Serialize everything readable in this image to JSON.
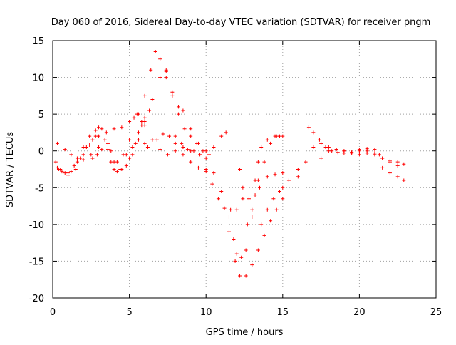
{
  "chart_data": {
    "type": "scatter",
    "title": "Day 060 of 2016, Sidereal Day-to-day VTEC variation (SDTVAR) for receiver pngm",
    "xlabel": "GPS time / hours",
    "ylabel": "SDTVAR / TECUs",
    "xlim": [
      0,
      25
    ],
    "ylim": [
      -20,
      15
    ],
    "xticks": [
      0,
      5,
      10,
      15,
      20,
      25
    ],
    "yticks": [
      15,
      10,
      5,
      0,
      -5,
      -10,
      -15,
      -20
    ],
    "grid": true,
    "marker": "+",
    "color": "#ff0000",
    "series": [
      {
        "values": [
          [
            0.2,
            -1.5
          ],
          [
            0.5,
            -2.5
          ],
          [
            1.0,
            -3.3
          ],
          [
            1.5,
            -2.5
          ],
          [
            2.0,
            -1.2
          ],
          [
            2.5,
            -0.5
          ],
          [
            3.0,
            0.5
          ]
        ]
      },
      {
        "values": [
          [
            0.3,
            1.0
          ],
          [
            0.8,
            0.2
          ],
          [
            1.2,
            -0.5
          ],
          [
            1.6,
            -1.0
          ],
          [
            2.0,
            -0.5
          ],
          [
            2.4,
            0.8
          ],
          [
            2.8,
            2.0
          ],
          [
            3.0,
            3.2
          ]
        ]
      },
      {
        "values": [
          [
            0.4,
            -2.5
          ],
          [
            0.8,
            -3.0
          ],
          [
            1.2,
            -2.8
          ],
          [
            1.6,
            -1.5
          ],
          [
            2.0,
            0.5
          ],
          [
            2.4,
            2.0
          ],
          [
            2.8,
            2.8
          ],
          [
            3.2,
            3.0
          ],
          [
            3.6,
            1.0
          ],
          [
            4.0,
            -1.5
          ],
          [
            4.4,
            -2.5
          ],
          [
            4.8,
            -2.0
          ],
          [
            5.2,
            -0.5
          ],
          [
            5.6,
            1.5
          ],
          [
            6.0,
            4.0
          ],
          [
            6.5,
            7.0
          ],
          [
            7.0,
            10.0
          ],
          [
            7.4,
            11.0
          ]
        ]
      },
      {
        "values": [
          [
            2.2,
            0.5
          ],
          [
            2.6,
            1.5
          ],
          [
            3.0,
            2.0
          ],
          [
            3.4,
            1.5
          ],
          [
            3.8,
            0.0
          ],
          [
            4.2,
            -1.5
          ],
          [
            4.6,
            -0.5
          ],
          [
            5.0,
            1.5
          ],
          [
            5.3,
            4.5
          ],
          [
            5.6,
            5.0
          ],
          [
            6.0,
            3.5
          ],
          [
            6.5,
            1.5
          ],
          [
            7.0,
            0.2
          ],
          [
            7.5,
            -0.5
          ],
          [
            8.0,
            0.0
          ],
          [
            8.5,
            0.5
          ],
          [
            9.0,
            0.0
          ]
        ]
      },
      {
        "values": [
          [
            2.6,
            -1.0
          ],
          [
            2.9,
            -0.5
          ],
          [
            3.2,
            0.2
          ],
          [
            3.6,
            0.2
          ],
          [
            3.8,
            -1.5
          ],
          [
            4.0,
            -2.5
          ],
          [
            4.2,
            -2.8
          ],
          [
            4.5,
            -2.5
          ],
          [
            5.0,
            -1.0
          ],
          [
            5.4,
            1.0
          ],
          [
            5.8,
            4.0
          ],
          [
            6.0,
            7.5
          ],
          [
            6.4,
            11.0
          ],
          [
            6.7,
            13.5
          ],
          [
            7.0,
            12.5
          ],
          [
            7.4,
            10.0
          ],
          [
            7.8,
            7.5
          ],
          [
            8.2,
            5.0
          ],
          [
            8.6,
            3.0
          ],
          [
            9.0,
            2.0
          ],
          [
            9.4,
            1.0
          ],
          [
            9.8,
            0.0
          ],
          [
            10.2,
            -0.5
          ]
        ]
      },
      {
        "values": [
          [
            3.5,
            2.5
          ],
          [
            4.0,
            3.0
          ],
          [
            4.5,
            3.2
          ],
          [
            5.0,
            4.0
          ],
          [
            5.5,
            5.0
          ],
          [
            5.8,
            3.5
          ],
          [
            6.0,
            1.0
          ]
        ]
      },
      {
        "values": [
          [
            4.8,
            -0.5
          ],
          [
            5.2,
            0.5
          ],
          [
            5.6,
            2.5
          ],
          [
            6.0,
            4.5
          ],
          [
            6.3,
            5.5
          ]
        ]
      },
      {
        "values": [
          [
            6.2,
            0.5
          ],
          [
            6.8,
            1.5
          ],
          [
            7.2,
            2.3
          ],
          [
            7.6,
            2.0
          ],
          [
            8.0,
            1.0
          ],
          [
            8.5,
            -0.5
          ],
          [
            9.0,
            -1.5
          ],
          [
            9.5,
            -2.3
          ],
          [
            10.0,
            -2.8
          ]
        ]
      },
      {
        "values": [
          [
            7.4,
            10.8
          ],
          [
            7.8,
            8.0
          ],
          [
            8.2,
            6.0
          ],
          [
            8.5,
            5.5
          ],
          [
            9.0,
            3.0
          ],
          [
            9.5,
            1.0
          ],
          [
            10.0,
            0.0
          ],
          [
            10.5,
            0.5
          ],
          [
            11.0,
            2.0
          ],
          [
            11.3,
            2.5
          ]
        ]
      },
      {
        "values": [
          [
            8.0,
            2.0
          ],
          [
            8.4,
            1.0
          ],
          [
            8.8,
            0.2
          ],
          [
            9.2,
            0.0
          ],
          [
            9.6,
            -0.5
          ],
          [
            10.0,
            -2.5
          ],
          [
            10.4,
            -4.5
          ],
          [
            10.8,
            -6.5
          ],
          [
            11.2,
            -7.8
          ],
          [
            11.6,
            -8.0
          ],
          [
            12.0,
            -8.0
          ],
          [
            12.4,
            -6.5
          ]
        ]
      },
      {
        "values": [
          [
            10.0,
            -1.0
          ],
          [
            10.5,
            -3.0
          ],
          [
            11.0,
            -5.5
          ],
          [
            11.5,
            -9.0
          ],
          [
            11.8,
            -12.0
          ],
          [
            12.0,
            -14.0
          ],
          [
            12.3,
            -14.5
          ],
          [
            12.6,
            -13.5
          ],
          [
            13.0,
            -9.0
          ],
          [
            13.4,
            -4.0
          ],
          [
            13.8,
            -1.5
          ],
          [
            14.2,
            1.0
          ],
          [
            14.6,
            2.0
          ],
          [
            15.0,
            2.0
          ]
        ]
      },
      {
        "values": [
          [
            11.5,
            -11.0
          ],
          [
            11.9,
            -15.0
          ],
          [
            12.2,
            -17.0
          ],
          [
            12.6,
            -17.0
          ],
          [
            13.0,
            -15.5
          ],
          [
            13.4,
            -13.5
          ],
          [
            13.8,
            -11.5
          ],
          [
            14.2,
            -9.5
          ],
          [
            14.6,
            -8.0
          ],
          [
            15.0,
            -6.5
          ],
          [
            15.4,
            -4.0
          ],
          [
            16.0,
            -2.5
          ]
        ]
      },
      {
        "values": [
          [
            12.2,
            -2.5
          ],
          [
            12.4,
            -5.0
          ],
          [
            12.7,
            -10.0
          ],
          [
            13.0,
            -8.0
          ],
          [
            13.2,
            -6.0
          ],
          [
            13.5,
            -5.0
          ],
          [
            14.0,
            -3.5
          ],
          [
            14.5,
            -3.2
          ],
          [
            15.0,
            -3.0
          ]
        ]
      },
      {
        "values": [
          [
            12.8,
            -6.5
          ],
          [
            13.2,
            -4.0
          ],
          [
            13.4,
            -1.5
          ],
          [
            13.6,
            0.5
          ],
          [
            14.0,
            1.5
          ],
          [
            14.5,
            2.0
          ],
          [
            14.8,
            2.0
          ]
        ]
      },
      {
        "values": [
          [
            13.6,
            -10.0
          ],
          [
            14.0,
            -8.0
          ],
          [
            14.4,
            -6.5
          ],
          [
            14.8,
            -5.5
          ],
          [
            15.0,
            -5.0
          ]
        ]
      },
      {
        "values": [
          [
            16.0,
            -3.5
          ],
          [
            16.5,
            -1.5
          ],
          [
            17.0,
            0.5
          ],
          [
            17.5,
            1.0
          ],
          [
            18.0,
            0.5
          ],
          [
            18.5,
            0.2
          ],
          [
            19.0,
            0.0
          ],
          [
            19.5,
            -0.2
          ],
          [
            20.0,
            -0.5
          ],
          [
            20.5,
            -0.3
          ],
          [
            21.0,
            -0.5
          ],
          [
            21.5,
            -1.0
          ],
          [
            22.0,
            -1.3
          ],
          [
            22.5,
            -1.5
          ],
          [
            22.9,
            -1.8
          ]
        ]
      },
      {
        "values": [
          [
            16.7,
            3.2
          ],
          [
            17.0,
            2.5
          ],
          [
            17.4,
            1.5
          ],
          [
            17.8,
            0.5
          ],
          [
            18.2,
            0.0
          ],
          [
            18.6,
            -0.2
          ],
          [
            19.0,
            -0.3
          ],
          [
            19.5,
            -0.2
          ],
          [
            20.0,
            0.2
          ],
          [
            20.5,
            0.3
          ],
          [
            21.0,
            0.2
          ],
          [
            21.3,
            -0.5
          ]
        ]
      },
      {
        "values": [
          [
            17.5,
            -1.0
          ],
          [
            18.0,
            0.0
          ],
          [
            18.5,
            0.2
          ],
          [
            19.0,
            0.0
          ],
          [
            19.5,
            -0.3
          ],
          [
            20.0,
            0.0
          ],
          [
            20.5,
            0.0
          ],
          [
            21.0,
            -0.3
          ],
          [
            21.5,
            -1.0
          ],
          [
            22.0,
            -1.5
          ],
          [
            22.5,
            -2.0
          ]
        ]
      },
      {
        "values": [
          [
            21.5,
            -2.3
          ],
          [
            22.0,
            -3.0
          ],
          [
            22.5,
            -3.5
          ],
          [
            22.9,
            -4.0
          ]
        ]
      },
      {
        "values": [
          [
            0.3,
            -2.3
          ],
          [
            0.6,
            -2.8
          ],
          [
            1.0,
            -3.0
          ],
          [
            1.4,
            -2.0
          ],
          [
            1.8,
            -1.0
          ]
        ]
      }
    ]
  }
}
